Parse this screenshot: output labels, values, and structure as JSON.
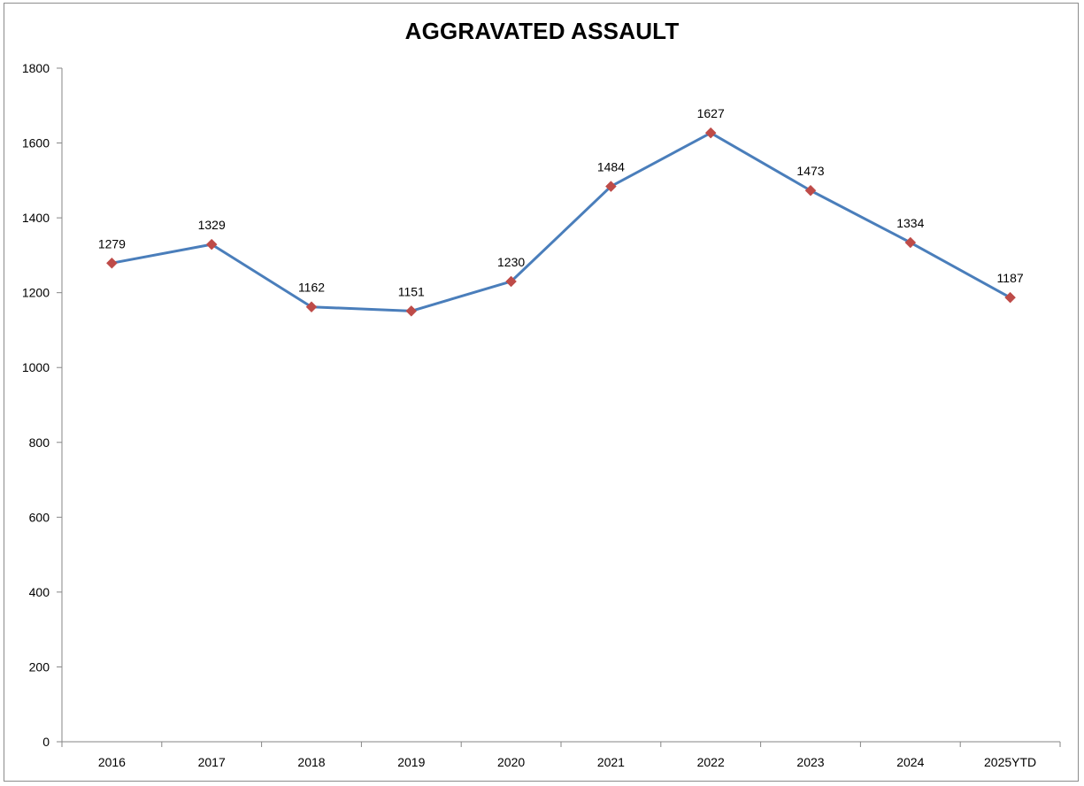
{
  "chart_data": {
    "type": "line",
    "title": "AGGRAVATED ASSAULT",
    "xlabel": "",
    "ylabel": "",
    "categories": [
      "2016",
      "2017",
      "2018",
      "2019",
      "2020",
      "2021",
      "2022",
      "2023",
      "2024",
      "2025YTD"
    ],
    "series": [
      {
        "values": [
          1279,
          1329,
          1162,
          1151,
          1230,
          1484,
          1627,
          1473,
          1334,
          1187
        ]
      }
    ],
    "ylim": [
      0,
      1800
    ],
    "yticks": [
      0,
      200,
      400,
      600,
      800,
      1000,
      1200,
      1400,
      1600,
      1800
    ],
    "grid": false,
    "legend": "none",
    "data_labels": true,
    "colors": {
      "line": "#4a7ebb",
      "marker": "#be4b48",
      "axis": "#868686"
    }
  }
}
